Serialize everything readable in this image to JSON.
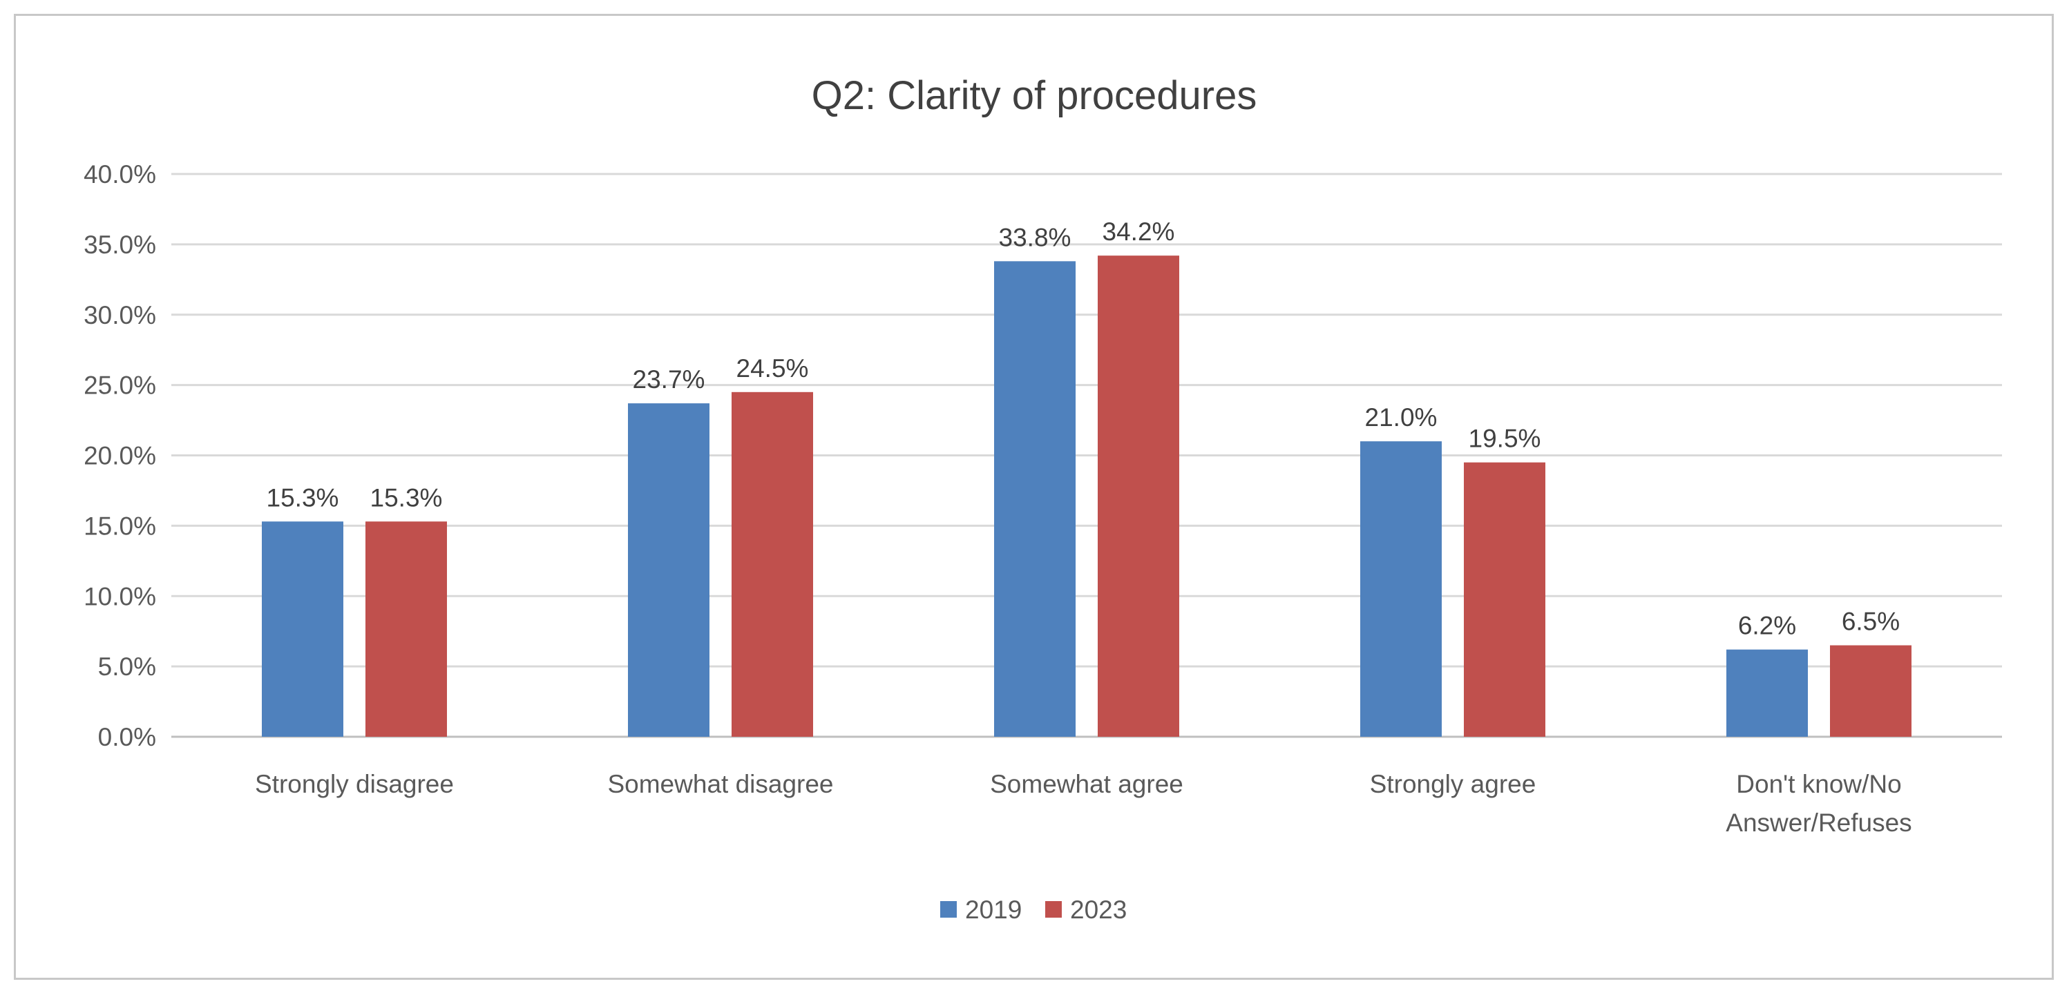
{
  "chart_data": {
    "type": "bar",
    "title": "Q2: Clarity of procedures",
    "xlabel": "",
    "ylabel": "",
    "ylim": [
      0,
      40
    ],
    "ytick_step": 5,
    "ytick_labels": [
      "0.0%",
      "5.0%",
      "10.0%",
      "15.0%",
      "20.0%",
      "25.0%",
      "30.0%",
      "35.0%",
      "40.0%"
    ],
    "grid": true,
    "legend_position": "bottom",
    "categories": [
      [
        "Strongly disagree"
      ],
      [
        "Somewhat disagree"
      ],
      [
        "Somewhat agree"
      ],
      [
        "Strongly agree"
      ],
      [
        "Don't know/No",
        "Answer/Refuses"
      ]
    ],
    "series": [
      {
        "name": "2019",
        "color": "#4f81bd",
        "values": [
          15.3,
          23.7,
          33.8,
          21.0,
          6.2
        ],
        "labels": [
          "15.3%",
          "23.7%",
          "33.8%",
          "21.0%",
          "6.2%"
        ]
      },
      {
        "name": "2023",
        "color": "#c0504d",
        "values": [
          15.3,
          24.5,
          34.2,
          19.5,
          6.5
        ],
        "labels": [
          "15.3%",
          "24.5%",
          "34.2%",
          "19.5%",
          "6.5%"
        ]
      }
    ]
  }
}
